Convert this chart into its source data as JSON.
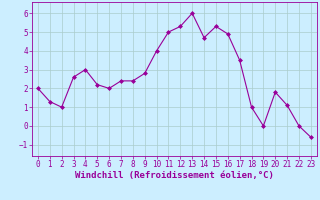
{
  "x": [
    0,
    1,
    2,
    3,
    4,
    5,
    6,
    7,
    8,
    9,
    10,
    11,
    12,
    13,
    14,
    15,
    16,
    17,
    18,
    19,
    20,
    21,
    22,
    23
  ],
  "y": [
    2.0,
    1.3,
    1.0,
    2.6,
    3.0,
    2.2,
    2.0,
    2.4,
    2.4,
    2.8,
    4.0,
    5.0,
    5.3,
    6.0,
    4.7,
    5.3,
    4.9,
    3.5,
    1.0,
    0.0,
    1.8,
    1.1,
    0.0,
    -0.6
  ],
  "line_color": "#990099",
  "marker": "D",
  "marker_size": 2,
  "bg_color": "#cceeff",
  "grid_color": "#aacccc",
  "xlabel": "Windchill (Refroidissement éolien,°C)",
  "xlabel_fontsize": 6.5,
  "tick_fontsize": 5.5,
  "ylim": [
    -1.6,
    6.6
  ],
  "xlim": [
    -0.5,
    23.5
  ],
  "yticks": [
    -1,
    0,
    1,
    2,
    3,
    4,
    5,
    6
  ],
  "xticks": [
    0,
    1,
    2,
    3,
    4,
    5,
    6,
    7,
    8,
    9,
    10,
    11,
    12,
    13,
    14,
    15,
    16,
    17,
    18,
    19,
    20,
    21,
    22,
    23
  ]
}
